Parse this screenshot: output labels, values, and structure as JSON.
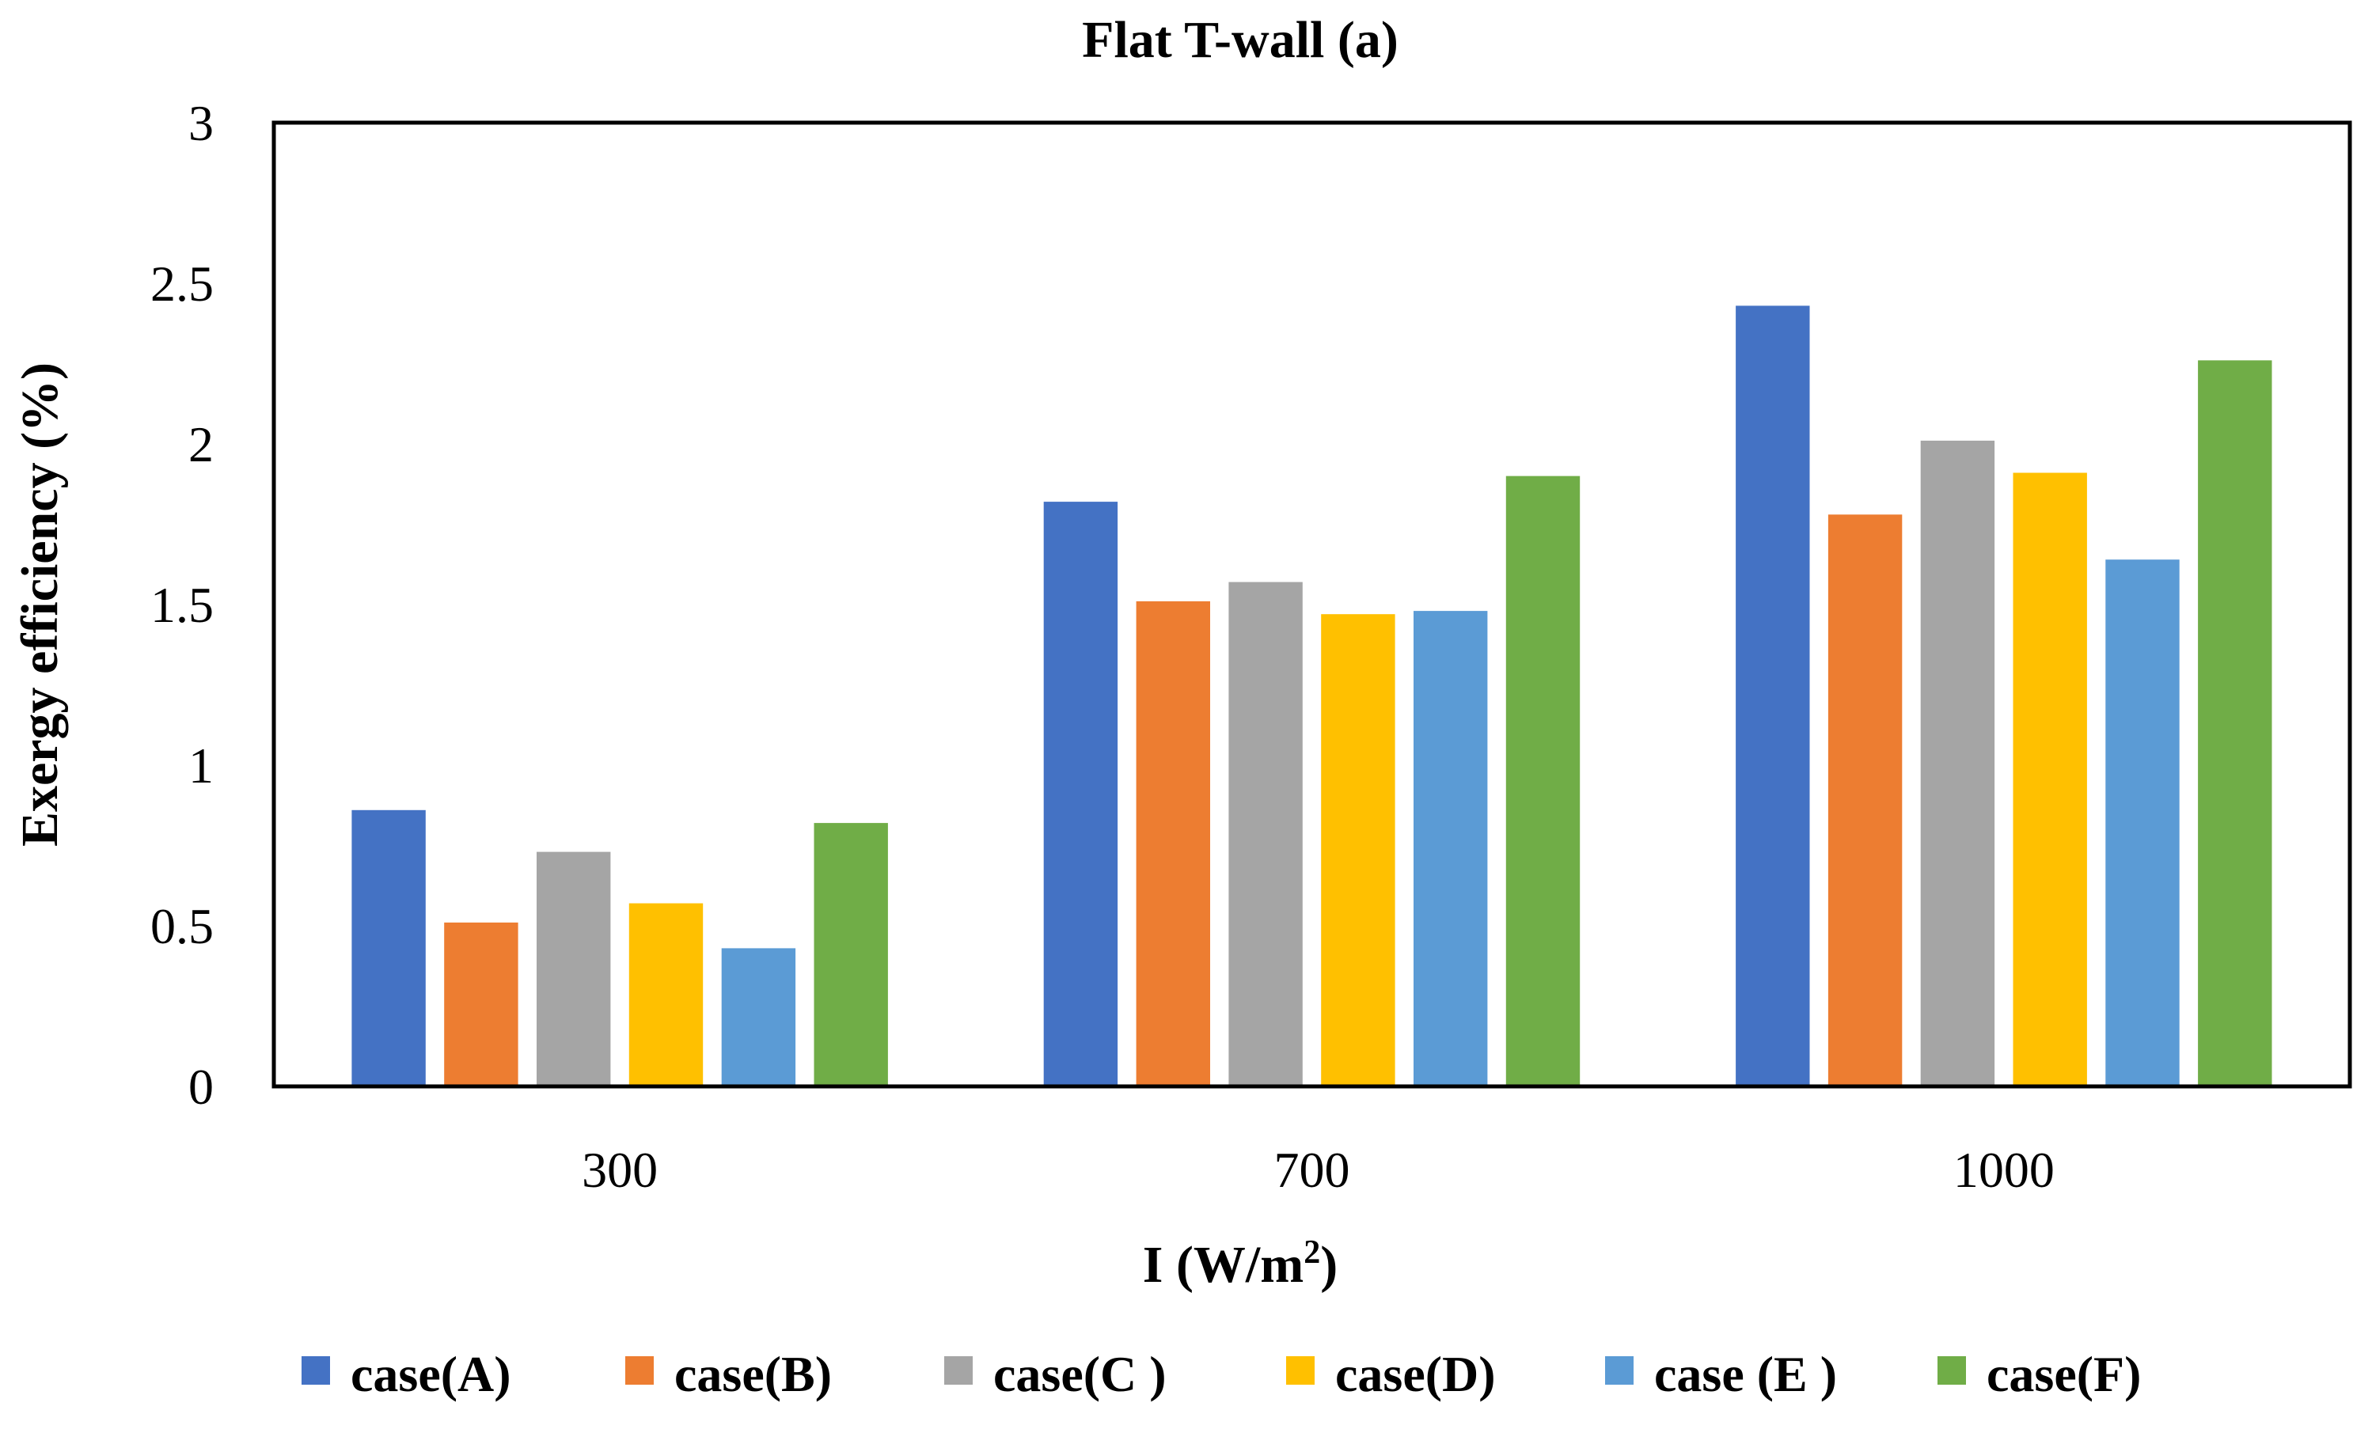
{
  "chart_data": {
    "type": "bar",
    "title": "Flat T-wall (a)",
    "xlabel": "I (W/m",
    "xlabel_sup": "2",
    "xlabel_end": ")",
    "ylabel": "Exergy efficiency (%)",
    "ylim": [
      0,
      3
    ],
    "yticks": [
      0,
      0.5,
      1,
      1.5,
      2,
      2.5,
      3
    ],
    "ytick_labels": [
      "0",
      "0.5",
      "1",
      "1.5",
      "2",
      "2.5",
      "3"
    ],
    "categories": [
      "300",
      "700",
      "1000"
    ],
    "grid": false,
    "legend_position": "bottom",
    "series": [
      {
        "name": "case(A)",
        "color": "#4472C4",
        "values": [
          0.86,
          1.82,
          2.43
        ]
      },
      {
        "name": "case(B)",
        "color": "#ED7D31",
        "values": [
          0.51,
          1.51,
          1.78
        ]
      },
      {
        "name": "case(C )",
        "color": "#A5A5A5",
        "values": [
          0.73,
          1.57,
          2.01
        ]
      },
      {
        "name": "case(D)",
        "color": "#FFC000",
        "values": [
          0.57,
          1.47,
          1.91
        ]
      },
      {
        "name": "case (E )",
        "color": "#5B9BD5",
        "values": [
          0.43,
          1.48,
          1.64
        ]
      },
      {
        "name": "case(F)",
        "color": "#70AD47",
        "values": [
          0.82,
          1.9,
          2.26
        ]
      }
    ]
  }
}
